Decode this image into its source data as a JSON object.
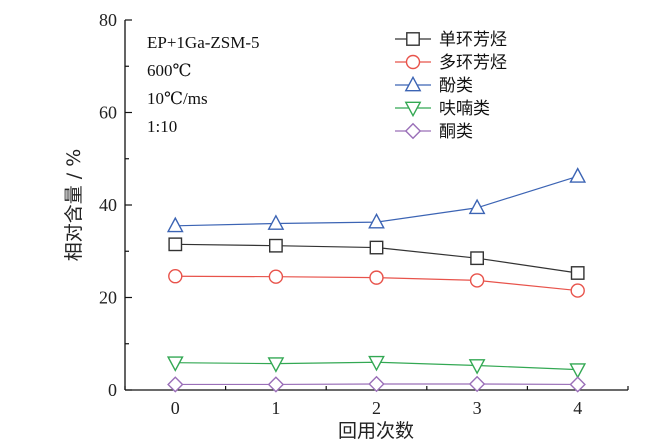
{
  "chart_data": {
    "type": "line",
    "xlabel": "回用次数",
    "ylabel": "相对含量 / %",
    "x": [
      0,
      1,
      2,
      3,
      4
    ],
    "xticks": [
      "0",
      "1",
      "2",
      "3",
      "4"
    ],
    "xlim": [
      -0.5,
      4.5
    ],
    "ylim": [
      0,
      80
    ],
    "yticks": [
      "0",
      "20",
      "40",
      "60",
      "80"
    ],
    "grid": false,
    "legend_position": "top-right",
    "annotations": [
      "EP+1Ga-ZSM-5",
      "600℃",
      "10℃/ms",
      "1:10"
    ],
    "series": [
      {
        "name": "单环芳烃",
        "marker": "square",
        "color": "#333333",
        "values": [
          31.5,
          31.2,
          30.8,
          28.5,
          25.3
        ]
      },
      {
        "name": "多环芳烃",
        "marker": "circle",
        "color": "#e8534b",
        "values": [
          24.6,
          24.5,
          24.3,
          23.7,
          21.5
        ]
      },
      {
        "name": "酚类",
        "marker": "triangle-up",
        "color": "#3c64b4",
        "values": [
          35.5,
          36.0,
          36.3,
          39.4,
          46.2
        ]
      },
      {
        "name": "呋喃类",
        "marker": "triangle-down",
        "color": "#33a853",
        "values": [
          5.9,
          5.7,
          6.0,
          5.3,
          4.4
        ]
      },
      {
        "name": "酮类",
        "marker": "diamond",
        "color": "#9a6fb8",
        "values": [
          1.2,
          1.2,
          1.3,
          1.3,
          1.2
        ]
      }
    ]
  }
}
